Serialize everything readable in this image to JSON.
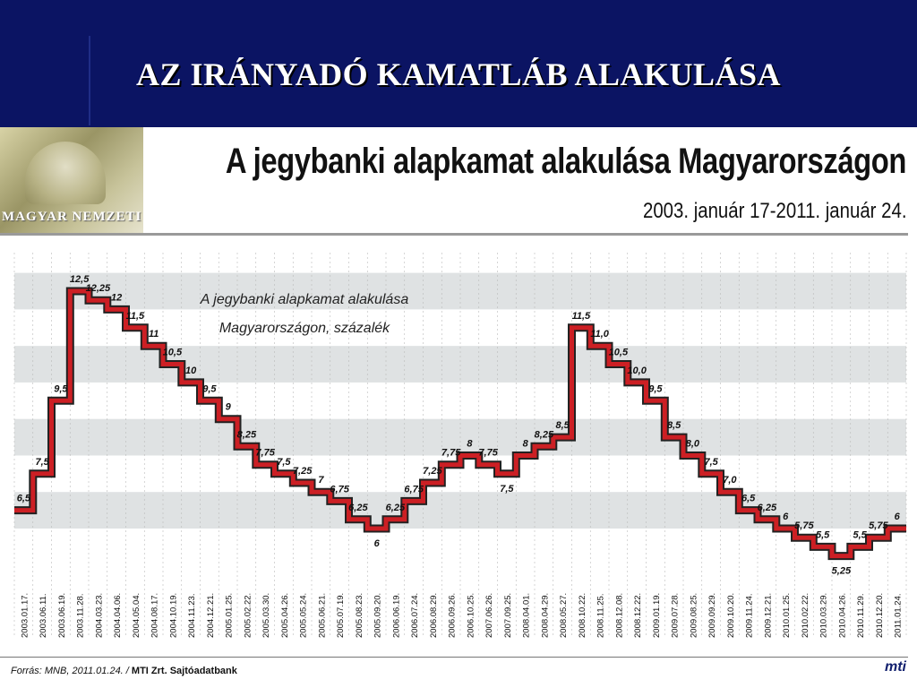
{
  "slide": {
    "title": "AZ IRÁNYADÓ KAMATLÁB ALAKULÁSA"
  },
  "logo": {
    "text": "MAGYAR NEMZETI"
  },
  "chart_header": {
    "title": "A jegybanki alapkamat alakulása Magyarországon",
    "subtitle": "2003. január 17-2011. január 24."
  },
  "chart_data": {
    "type": "line",
    "step": true,
    "legend_text_line1": "A jegybanki alapkamat alakulása",
    "legend_text_line2": "Magyarországon, százalék",
    "x": [
      "2003.01.17.",
      "2003.06.11.",
      "2003.06.19.",
      "2003.11.28.",
      "2004.03.23.",
      "2004.04.06.",
      "2004.05.04.",
      "2004.08.17.",
      "2004.10.19.",
      "2004.11.23.",
      "2004.12.21.",
      "2005.01.25.",
      "2005.02.22.",
      "2005.03.30.",
      "2005.04.26.",
      "2005.05.24.",
      "2005.06.21.",
      "2005.07.19.",
      "2005.08.23.",
      "2005.09.20.",
      "2006.06.19.",
      "2006.07.24.",
      "2006.08.29.",
      "2006.09.26.",
      "2006.10.25.",
      "2007.06.26.",
      "2007.09.25.",
      "2008.04.01.",
      "2008.04.29.",
      "2008.05.27.",
      "2008.10.22.",
      "2008.11.25.",
      "2008.12.08.",
      "2008.12.22.",
      "2009.01.19.",
      "2009.07.28.",
      "2009.08.25.",
      "2009.09.29.",
      "2009.10.20.",
      "2009.11.24.",
      "2009.12.21.",
      "2010.01.25.",
      "2010.02.22.",
      "2010.03.29.",
      "2010.04.26.",
      "2010.11.29.",
      "2010.12.20.",
      "2011.01.24."
    ],
    "values": [
      6.5,
      7.5,
      9.5,
      12.5,
      12.25,
      12,
      11.5,
      11,
      10.5,
      10,
      9.5,
      9,
      8.25,
      7.75,
      7.5,
      7.25,
      7,
      6.75,
      6.25,
      6,
      6.25,
      6.75,
      7.25,
      7.75,
      8,
      7.75,
      7.5,
      8,
      8.25,
      8.5,
      11.5,
      11.0,
      10.5,
      10.0,
      9.5,
      8.5,
      8.0,
      7.5,
      7.0,
      6.5,
      6.25,
      6,
      5.75,
      5.5,
      5.25,
      5.5,
      5.75,
      6
    ],
    "value_labels": [
      "6,5",
      "7,5",
      "9,5",
      "12,5",
      "12,25",
      "12",
      "11,5",
      "11",
      "10,5",
      "10",
      "9,5",
      "9",
      "8,25",
      "7,75",
      "7,5",
      "7,25",
      "7",
      "6,75",
      "6,25",
      "6",
      "6,25",
      "6,75",
      "7,25",
      "7,75",
      "8",
      "7,75",
      "7,5",
      "8",
      "8,25",
      "8,5",
      "11,5",
      "11,0",
      "10,5",
      "10,0",
      "9,5",
      "8,5",
      "8,0",
      "7,5",
      "7,0",
      "6,5",
      "6,25",
      "6",
      "5,75",
      "5,5",
      "5,25",
      "5,5",
      "5,75",
      "6"
    ],
    "ylim": [
      5,
      13
    ],
    "grid": "alternating horizontal bands",
    "line_color": "#cc1f24",
    "band_color": "#dfe2e3"
  },
  "footer": {
    "source_italic": "Forrás: MNB, 2011.01.24. /",
    "source_bold": "MTI Zrt. Sajtóadatbank",
    "agency_logo": "mti"
  },
  "colors": {
    "header_bg": "#0b1463",
    "title_text": "#ffffff",
    "series_line": "#cc1f24"
  }
}
